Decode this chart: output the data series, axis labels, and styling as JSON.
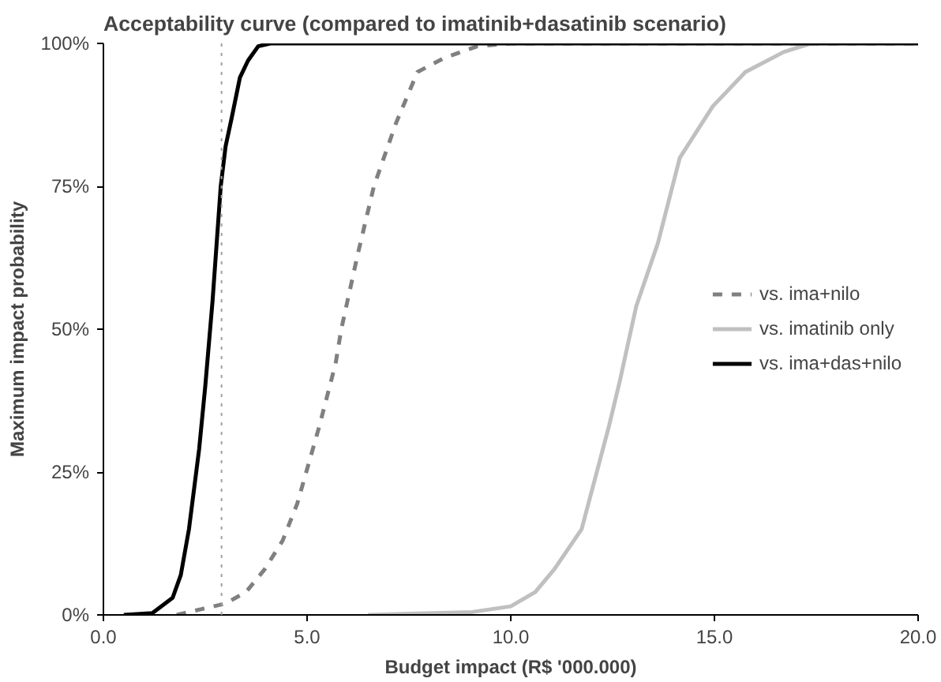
{
  "chart_data": {
    "type": "line",
    "title": "Acceptability curve (compared to imatinib+dasatinib scenario)",
    "xlabel": "Budget impact (R$ '000.000)",
    "ylabel": "Maximum impact probability",
    "xlim": [
      0,
      20
    ],
    "ylim": [
      0,
      100
    ],
    "xticks": [
      {
        "value": 0,
        "label": "0.0"
      },
      {
        "value": 5,
        "label": "5.0"
      },
      {
        "value": 10,
        "label": "10.0"
      },
      {
        "value": 15,
        "label": "15.0"
      },
      {
        "value": 20,
        "label": "20.0"
      }
    ],
    "yticks": [
      {
        "value": 0,
        "label": "0%"
      },
      {
        "value": 25,
        "label": "25%"
      },
      {
        "value": 50,
        "label": "50%"
      },
      {
        "value": 75,
        "label": "75%"
      },
      {
        "value": 100,
        "label": "100%"
      }
    ],
    "grid": false,
    "legend": "right",
    "marker": "none",
    "ref_lines": [
      {
        "axis": "x",
        "value": 2.9,
        "color": "#a0a0a0",
        "line_style": "dotted"
      }
    ],
    "series": [
      {
        "name": "vs. ima+nilo",
        "color": "#808080",
        "line_style": "dashed",
        "x": [
          1.8,
          3.0,
          3.5,
          3.96,
          4.4,
          4.76,
          5.3,
          5.7,
          5.84,
          6.24,
          6.64,
          7.18,
          7.71,
          8.38,
          9.18,
          10.0,
          20.0
        ],
        "values": [
          0,
          2,
          4,
          8,
          13,
          19.5,
          33,
          44,
          50,
          63,
          75,
          86,
          95,
          97.5,
          99.5,
          100,
          100
        ]
      },
      {
        "name": "vs. imatinib only",
        "color": "#c0c0c0",
        "line_style": "solid",
        "x": [
          6.5,
          9.05,
          10.0,
          10.6,
          11.07,
          11.74,
          12.41,
          12.68,
          13.08,
          13.61,
          14.15,
          14.96,
          15.76,
          16.7,
          17.37
        ],
        "values": [
          0,
          0.5,
          1.5,
          4,
          8,
          15,
          33,
          41,
          54,
          65,
          80,
          89,
          95,
          98.5,
          100
        ]
      },
      {
        "name": "vs. ima+das+nilo",
        "color": "#000000",
        "line_style": "solid",
        "x": [
          0.5,
          1.2,
          1.7,
          1.9,
          2.1,
          2.35,
          2.5,
          2.68,
          2.88,
          3.0,
          3.15,
          3.35,
          3.55,
          3.8,
          4.1,
          20.0
        ],
        "values": [
          0,
          0.3,
          3,
          7,
          15,
          29,
          40,
          55,
          75,
          82,
          87,
          94,
          97,
          99.5,
          100,
          100
        ]
      }
    ]
  }
}
